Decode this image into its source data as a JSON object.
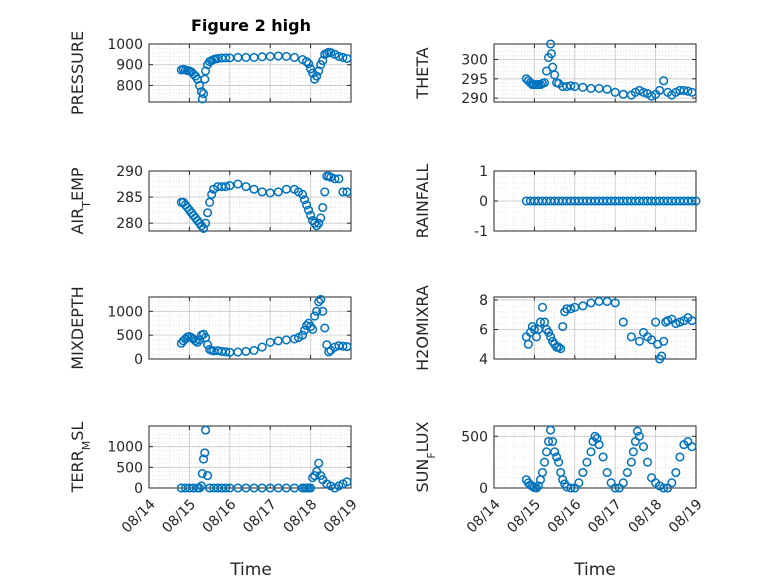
{
  "figure": {
    "title": "Figure 2 high",
    "xlabel": "Time",
    "xticks": [
      "08/14",
      "08/15",
      "08/16",
      "08/17",
      "08/18",
      "08/19"
    ],
    "marker_color": "#0072BD"
  },
  "chart_data": [
    {
      "type": "scatter",
      "ylabel": "PRESSURE",
      "x_days": [
        14,
        19
      ],
      "ylim": [
        720,
        1000
      ],
      "yticks": [
        800,
        900,
        1000
      ],
      "xtick_labels": [],
      "series": [
        {
          "x": [
            14.8,
            14.85,
            14.9,
            14.95,
            15.0,
            15.05,
            15.1,
            15.15,
            15.2,
            15.25,
            15.3,
            15.32,
            15.35,
            15.38,
            15.4,
            15.45,
            15.5,
            15.55,
            15.6,
            15.65,
            15.7,
            15.8,
            15.9,
            16.0,
            16.2,
            16.4,
            16.6,
            16.8,
            17.0,
            17.2,
            17.4,
            17.6,
            17.8,
            17.9,
            17.95,
            18.0,
            18.05,
            18.1,
            18.15,
            18.2,
            18.25,
            18.3,
            18.35,
            18.4,
            18.45,
            18.5,
            18.6,
            18.7,
            18.8,
            18.9
          ],
          "y": [
            875,
            878,
            875,
            872,
            870,
            865,
            855,
            845,
            830,
            800,
            770,
            735,
            760,
            830,
            870,
            900,
            915,
            920,
            925,
            928,
            930,
            932,
            933,
            933,
            935,
            935,
            935,
            938,
            940,
            942,
            940,
            935,
            925,
            915,
            905,
            880,
            860,
            830,
            845,
            870,
            900,
            920,
            950,
            955,
            960,
            958,
            950,
            940,
            935,
            930
          ]
        }
      ]
    },
    {
      "type": "scatter",
      "ylabel": "THETA",
      "x_days": [
        14,
        19
      ],
      "ylim": [
        289,
        304
      ],
      "yticks": [
        290,
        295,
        300
      ],
      "xtick_labels": [],
      "series": [
        {
          "x": [
            14.8,
            14.85,
            14.9,
            14.95,
            15.0,
            15.05,
            15.1,
            15.15,
            15.2,
            15.25,
            15.3,
            15.35,
            15.4,
            15.42,
            15.45,
            15.5,
            15.55,
            15.6,
            15.7,
            15.8,
            15.9,
            16.0,
            16.2,
            16.4,
            16.6,
            16.8,
            17.0,
            17.2,
            17.4,
            17.5,
            17.6,
            17.7,
            17.8,
            17.9,
            18.0,
            18.1,
            18.2,
            18.3,
            18.4,
            18.5,
            18.6,
            18.7,
            18.8,
            18.9
          ],
          "y": [
            295,
            294.5,
            294,
            293.5,
            293.5,
            293.5,
            293.5,
            293.5,
            293.8,
            294,
            297,
            300.5,
            304,
            301.5,
            298,
            296,
            294,
            293.8,
            293,
            293,
            293.2,
            293,
            292.8,
            292.5,
            292.5,
            292.3,
            291.5,
            291,
            290.8,
            291.5,
            292,
            291.5,
            291.2,
            290.5,
            291,
            292,
            294.5,
            291.5,
            290.8,
            291.5,
            292,
            292,
            291.8,
            291.5
          ]
        }
      ]
    },
    {
      "type": "scatter",
      "ylabel": "AIR_TEMP",
      "x_days": [
        14,
        19
      ],
      "ylim": [
        278.5,
        290
      ],
      "yticks": [
        280,
        285,
        290
      ],
      "xtick_labels": [],
      "series": [
        {
          "x": [
            14.8,
            14.85,
            14.9,
            14.95,
            15.0,
            15.05,
            15.1,
            15.15,
            15.2,
            15.25,
            15.3,
            15.35,
            15.4,
            15.45,
            15.5,
            15.55,
            15.6,
            15.7,
            15.8,
            15.9,
            16.0,
            16.2,
            16.4,
            16.6,
            16.8,
            17.0,
            17.2,
            17.4,
            17.6,
            17.7,
            17.8,
            17.85,
            17.9,
            17.95,
            18.0,
            18.05,
            18.1,
            18.15,
            18.2,
            18.25,
            18.3,
            18.35,
            18.4,
            18.45,
            18.5,
            18.6,
            18.7,
            18.8,
            18.9
          ],
          "y": [
            284,
            284,
            283.5,
            283,
            282.5,
            282,
            281.5,
            281,
            280.5,
            280,
            279.5,
            279,
            280,
            282,
            284,
            285.5,
            286.5,
            287,
            287,
            287,
            287.2,
            287.5,
            287,
            286.5,
            286,
            285.8,
            286,
            286.5,
            286.5,
            286,
            285.5,
            284.5,
            283.5,
            282.5,
            281.5,
            280.5,
            280,
            279.5,
            280,
            281,
            283,
            286,
            289,
            289,
            288.8,
            288.5,
            288.5,
            286,
            286
          ]
        }
      ]
    },
    {
      "type": "scatter",
      "ylabel": "RAINFALL",
      "x_days": [
        14,
        19
      ],
      "ylim": [
        -1,
        1
      ],
      "yticks": [
        -1,
        0,
        1
      ],
      "xtick_labels": [],
      "series": [
        {
          "x": [
            14.8,
            14.9,
            15.0,
            15.1,
            15.2,
            15.3,
            15.4,
            15.5,
            15.6,
            15.7,
            15.8,
            15.9,
            16.0,
            16.1,
            16.2,
            16.3,
            16.4,
            16.5,
            16.6,
            16.7,
            16.8,
            16.9,
            17.0,
            17.1,
            17.2,
            17.3,
            17.4,
            17.5,
            17.6,
            17.7,
            17.8,
            17.9,
            18.0,
            18.1,
            18.2,
            18.3,
            18.4,
            18.5,
            18.6,
            18.7,
            18.8,
            18.9,
            19.0
          ],
          "y": [
            0,
            0,
            0,
            0,
            0,
            0,
            0,
            0,
            0,
            0,
            0,
            0,
            0,
            0,
            0,
            0,
            0,
            0,
            0,
            0,
            0,
            0,
            0,
            0,
            0,
            0,
            0,
            0,
            0,
            0,
            0,
            0,
            0,
            0,
            0,
            0,
            0,
            0,
            0,
            0,
            0,
            0,
            0
          ]
        }
      ]
    },
    {
      "type": "scatter",
      "ylabel": "MIXDEPTH",
      "x_days": [
        14,
        19
      ],
      "ylim": [
        0,
        1300
      ],
      "yticks": [
        0,
        500,
        1000
      ],
      "xtick_labels": [],
      "series": [
        {
          "x": [
            14.8,
            14.85,
            14.9,
            14.95,
            15.0,
            15.05,
            15.1,
            15.15,
            15.2,
            15.25,
            15.3,
            15.35,
            15.4,
            15.45,
            15.5,
            15.55,
            15.6,
            15.7,
            15.8,
            15.9,
            16.0,
            16.2,
            16.4,
            16.6,
            16.8,
            17.0,
            17.2,
            17.4,
            17.6,
            17.7,
            17.8,
            17.85,
            17.9,
            17.95,
            18.0,
            18.05,
            18.1,
            18.15,
            18.2,
            18.25,
            18.3,
            18.35,
            18.4,
            18.45,
            18.5,
            18.6,
            18.7,
            18.8,
            18.9
          ],
          "y": [
            330,
            380,
            420,
            460,
            470,
            450,
            420,
            380,
            350,
            400,
            500,
            520,
            450,
            300,
            200,
            180,
            170,
            175,
            160,
            150,
            140,
            145,
            160,
            180,
            250,
            350,
            380,
            400,
            420,
            450,
            500,
            600,
            700,
            750,
            680,
            620,
            900,
            1000,
            1200,
            1250,
            1000,
            650,
            300,
            150,
            180,
            250,
            280,
            270,
            260
          ]
        }
      ]
    },
    {
      "type": "scatter",
      "ylabel": "H2OMIXRA",
      "x_days": [
        14,
        19
      ],
      "ylim": [
        4,
        8.2
      ],
      "yticks": [
        4,
        6,
        8
      ],
      "xtick_labels": [],
      "series": [
        {
          "x": [
            14.8,
            14.85,
            14.9,
            14.95,
            15.0,
            15.05,
            15.1,
            15.15,
            15.2,
            15.25,
            15.3,
            15.35,
            15.4,
            15.45,
            15.5,
            15.55,
            15.6,
            15.65,
            15.7,
            15.75,
            15.8,
            15.9,
            16.0,
            16.2,
            16.4,
            16.6,
            16.8,
            17.0,
            17.2,
            17.4,
            17.6,
            17.7,
            17.8,
            17.9,
            18.0,
            18.05,
            18.1,
            18.15,
            18.2,
            18.25,
            18.3,
            18.4,
            18.5,
            18.6,
            18.7,
            18.8,
            18.9
          ],
          "y": [
            5.5,
            5,
            5.8,
            6.2,
            6,
            5.5,
            6,
            6.5,
            7.5,
            6.5,
            6,
            5.8,
            5.5,
            5.2,
            5,
            4.8,
            4.8,
            4.7,
            6.2,
            7.2,
            7.4,
            7.4,
            7.5,
            7.6,
            7.8,
            7.9,
            7.9,
            7.8,
            6.5,
            5.5,
            5.2,
            5.8,
            5.5,
            5.3,
            6.5,
            5,
            4,
            4.2,
            5.2,
            6.5,
            6.6,
            6.7,
            6.4,
            6.5,
            6.6,
            6.8,
            6.6
          ]
        }
      ]
    },
    {
      "type": "scatter",
      "ylabel": "TERR_MSL",
      "x_days": [
        14,
        19
      ],
      "ylim": [
        0,
        1500
      ],
      "yticks": [
        0,
        500,
        1000
      ],
      "xtick_labels": [
        "08/14",
        "08/15",
        "08/16",
        "08/17",
        "08/18",
        "08/19"
      ],
      "series": [
        {
          "x": [
            14.8,
            14.9,
            15.0,
            15.1,
            15.2,
            15.25,
            15.3,
            15.32,
            15.35,
            15.38,
            15.4,
            15.45,
            15.5,
            15.6,
            15.7,
            15.8,
            15.9,
            16.0,
            16.2,
            16.4,
            16.6,
            16.8,
            17.0,
            17.2,
            17.4,
            17.6,
            17.8,
            17.85,
            17.9,
            17.95,
            18.0,
            18.05,
            18.1,
            18.15,
            18.2,
            18.25,
            18.3,
            18.4,
            18.5,
            18.6,
            18.7,
            18.8,
            18.9
          ],
          "y": [
            0,
            0,
            0,
            0,
            0,
            0,
            50,
            350,
            700,
            850,
            1400,
            300,
            0,
            0,
            0,
            0,
            0,
            0,
            0,
            0,
            0,
            0,
            0,
            0,
            0,
            0,
            0,
            0,
            0,
            0,
            0,
            250,
            300,
            400,
            600,
            300,
            200,
            100,
            50,
            0,
            50,
            100,
            150
          ]
        }
      ]
    },
    {
      "type": "scatter",
      "ylabel": "SUN_FLUX",
      "x_days": [
        14,
        19
      ],
      "ylim": [
        0,
        600
      ],
      "yticks": [
        0,
        500
      ],
      "xtick_labels": [
        "08/14",
        "08/15",
        "08/16",
        "08/17",
        "08/18",
        "08/19"
      ],
      "series": [
        {
          "x": [
            14.8,
            14.85,
            14.9,
            14.95,
            15.0,
            15.05,
            15.1,
            15.15,
            15.2,
            15.25,
            15.3,
            15.35,
            15.4,
            15.45,
            15.5,
            15.55,
            15.6,
            15.65,
            15.7,
            15.75,
            15.8,
            15.9,
            16.0,
            16.1,
            16.2,
            16.3,
            16.4,
            16.45,
            16.5,
            16.55,
            16.6,
            16.7,
            16.8,
            16.9,
            17.0,
            17.1,
            17.2,
            17.3,
            17.4,
            17.45,
            17.5,
            17.55,
            17.6,
            17.7,
            17.8,
            17.9,
            18.0,
            18.1,
            18.2,
            18.3,
            18.4,
            18.5,
            18.6,
            18.7,
            18.8,
            18.9
          ],
          "y": [
            80,
            50,
            30,
            15,
            5,
            0,
            20,
            80,
            150,
            250,
            350,
            450,
            560,
            450,
            350,
            300,
            250,
            150,
            80,
            40,
            10,
            0,
            0,
            50,
            150,
            250,
            350,
            450,
            500,
            480,
            420,
            300,
            150,
            50,
            0,
            0,
            50,
            150,
            250,
            350,
            450,
            550,
            500,
            400,
            250,
            100,
            50,
            20,
            0,
            0,
            50,
            150,
            300,
            420,
            450,
            400
          ]
        }
      ]
    }
  ]
}
